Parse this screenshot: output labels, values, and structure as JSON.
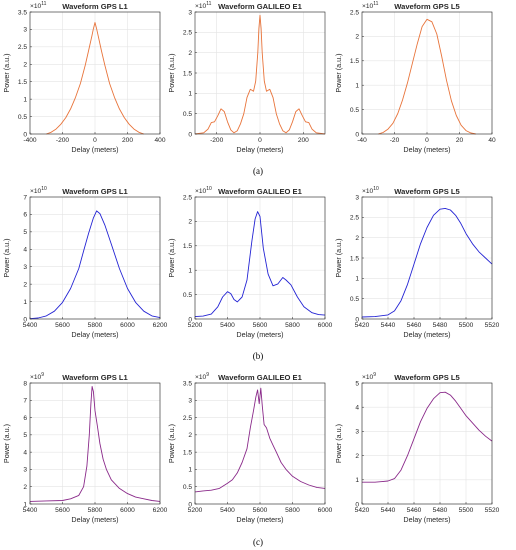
{
  "row_captions": [
    "(a)",
    "(b)",
    "(c)"
  ],
  "colors": {
    "row_a": "#e8743b",
    "row_b": "#2424d4",
    "row_c": "#8a2a8a",
    "axis": "#262626",
    "grid": "#e4e4e4"
  },
  "chart_data": [
    {
      "type": "line",
      "title": "Waveform GPS L1",
      "xlabel": "Delay (meters)",
      "ylabel": "Power (a.u.)",
      "multiplier": "×10^11",
      "multiplier_base": "×10",
      "multiplier_exp": "11",
      "xlim": [
        -400,
        400
      ],
      "ylim": [
        0,
        3.5
      ],
      "xticks": [
        -400,
        -200,
        0,
        200,
        400
      ],
      "yticks": [
        0,
        0.5,
        1,
        1.5,
        2,
        2.5,
        3,
        3.5
      ],
      "grid": true,
      "x": [
        -300,
        -270,
        -240,
        -210,
        -180,
        -150,
        -120,
        -90,
        -60,
        -40,
        -20,
        -10,
        0,
        10,
        20,
        40,
        60,
        90,
        120,
        150,
        180,
        210,
        240,
        270,
        300
      ],
      "y": [
        0.0,
        0.05,
        0.14,
        0.28,
        0.47,
        0.72,
        1.05,
        1.45,
        1.98,
        2.38,
        2.8,
        3.02,
        3.2,
        3.02,
        2.8,
        2.38,
        1.98,
        1.45,
        1.05,
        0.72,
        0.47,
        0.28,
        0.14,
        0.05,
        0.0
      ]
    },
    {
      "type": "line",
      "title": "Waveform GALILEO E1",
      "xlabel": "Delay (meters)",
      "ylabel": "Power (a.u.)",
      "multiplier": "×10^11",
      "multiplier_base": "×10",
      "multiplier_exp": "11",
      "xlim": [
        -300,
        300
      ],
      "ylim": [
        0,
        3
      ],
      "xticks": [
        -200,
        0,
        200
      ],
      "yticks": [
        0,
        0.5,
        1,
        1.5,
        2,
        2.5,
        3
      ],
      "grid": true,
      "x": [
        -300,
        -260,
        -240,
        -225,
        -210,
        -195,
        -180,
        -165,
        -150,
        -135,
        -120,
        -105,
        -90,
        -75,
        -60,
        -45,
        -30,
        -20,
        -10,
        -5,
        0,
        5,
        10,
        20,
        30,
        45,
        60,
        75,
        90,
        105,
        120,
        135,
        150,
        165,
        180,
        195,
        210,
        225,
        240,
        260,
        300
      ],
      "y": [
        0.0,
        0.03,
        0.12,
        0.28,
        0.3,
        0.45,
        0.62,
        0.55,
        0.3,
        0.1,
        0.03,
        0.08,
        0.25,
        0.5,
        0.9,
        1.1,
        1.05,
        1.3,
        2.0,
        2.6,
        2.92,
        2.6,
        2.0,
        1.3,
        1.05,
        1.1,
        0.9,
        0.5,
        0.25,
        0.08,
        0.03,
        0.1,
        0.3,
        0.55,
        0.62,
        0.45,
        0.3,
        0.28,
        0.12,
        0.03,
        0.0
      ]
    },
    {
      "type": "line",
      "title": "Waveform GPS L5",
      "xlabel": "Delay (meters)",
      "ylabel": "Power (a.u.)",
      "multiplier": "×10^11",
      "multiplier_base": "×10",
      "multiplier_exp": "11",
      "xlim": [
        -40,
        40
      ],
      "ylim": [
        0,
        2.5
      ],
      "xticks": [
        -40,
        -20,
        0,
        20,
        40
      ],
      "yticks": [
        0,
        0.5,
        1,
        1.5,
        2,
        2.5
      ],
      "grid": true,
      "x": [
        -30,
        -27,
        -24,
        -21,
        -18,
        -15,
        -12,
        -9,
        -6,
        -3,
        0,
        3,
        6,
        9,
        12,
        15,
        18,
        21,
        24,
        27,
        30
      ],
      "y": [
        0.0,
        0.03,
        0.1,
        0.22,
        0.42,
        0.7,
        1.05,
        1.45,
        1.85,
        2.2,
        2.35,
        2.3,
        2.05,
        1.6,
        1.1,
        0.68,
        0.38,
        0.18,
        0.07,
        0.02,
        0.0
      ]
    },
    {
      "type": "line",
      "title": "Waveform GPS L1",
      "xlabel": "Delay (meters)",
      "ylabel": "Power (a.u.)",
      "multiplier": "×10^10",
      "multiplier_base": "×10",
      "multiplier_exp": "10",
      "xlim": [
        5400,
        6200
      ],
      "ylim": [
        0,
        7
      ],
      "xticks": [
        5400,
        5600,
        5800,
        6000,
        6200
      ],
      "yticks": [
        0,
        1,
        2,
        3,
        4,
        5,
        6,
        7
      ],
      "grid": true,
      "x": [
        5400,
        5450,
        5500,
        5550,
        5600,
        5650,
        5700,
        5730,
        5760,
        5790,
        5810,
        5830,
        5860,
        5900,
        5950,
        6000,
        6050,
        6100,
        6150,
        6200
      ],
      "y": [
        0.02,
        0.06,
        0.18,
        0.45,
        0.95,
        1.75,
        2.9,
        3.9,
        4.9,
        5.8,
        6.2,
        6.05,
        5.4,
        4.3,
        2.9,
        1.75,
        0.95,
        0.45,
        0.18,
        0.08
      ]
    },
    {
      "type": "line",
      "title": "Waveform GALILEO E1",
      "xlabel": "Delay (meters)",
      "ylabel": "Power (a.u.)",
      "multiplier": "×10^10",
      "multiplier_base": "×10",
      "multiplier_exp": "10",
      "xlim": [
        5200,
        6000
      ],
      "ylim": [
        0,
        2.5
      ],
      "xticks": [
        5200,
        5400,
        5600,
        5800,
        6000
      ],
      "yticks": [
        0,
        0.5,
        1,
        1.5,
        2,
        2.5
      ],
      "grid": true,
      "x": [
        5200,
        5250,
        5300,
        5340,
        5370,
        5400,
        5420,
        5440,
        5460,
        5490,
        5520,
        5550,
        5570,
        5585,
        5600,
        5620,
        5650,
        5680,
        5710,
        5740,
        5760,
        5790,
        5830,
        5870,
        5920,
        5960,
        6000
      ],
      "y": [
        0.05,
        0.06,
        0.1,
        0.25,
        0.45,
        0.56,
        0.52,
        0.4,
        0.35,
        0.45,
        0.8,
        1.6,
        2.05,
        2.2,
        2.1,
        1.45,
        0.92,
        0.68,
        0.72,
        0.85,
        0.8,
        0.7,
        0.45,
        0.25,
        0.13,
        0.09,
        0.08
      ]
    },
    {
      "type": "line",
      "title": "Waveform GPS L5",
      "xlabel": "Delay (meters)",
      "ylabel": "Power (a.u.)",
      "multiplier": "×10^10",
      "multiplier_base": "×10",
      "multiplier_exp": "10",
      "xlim": [
        5420,
        5520
      ],
      "ylim": [
        0,
        3
      ],
      "xticks": [
        5420,
        5440,
        5460,
        5480,
        5500,
        5520
      ],
      "yticks": [
        0,
        0.5,
        1,
        1.5,
        2,
        2.5,
        3
      ],
      "grid": true,
      "x": [
        5420,
        5430,
        5440,
        5445,
        5450,
        5455,
        5460,
        5465,
        5470,
        5475,
        5480,
        5484,
        5488,
        5492,
        5496,
        5500,
        5505,
        5510,
        5515,
        5520
      ],
      "y": [
        0.05,
        0.06,
        0.1,
        0.2,
        0.45,
        0.85,
        1.35,
        1.85,
        2.25,
        2.55,
        2.7,
        2.72,
        2.68,
        2.55,
        2.35,
        2.1,
        1.85,
        1.65,
        1.5,
        1.35
      ]
    },
    {
      "type": "line",
      "title": "Waveform GPS L1",
      "xlabel": "Delay (meters)",
      "ylabel": "Power (a.u.)",
      "multiplier": "×10^9",
      "multiplier_base": "×10",
      "multiplier_exp": "9",
      "xlim": [
        5400,
        6200
      ],
      "ylim": [
        1,
        8
      ],
      "xticks": [
        5400,
        5600,
        5800,
        6000,
        6200
      ],
      "yticks": [
        1,
        2,
        3,
        4,
        5,
        6,
        7,
        8
      ],
      "grid": true,
      "x": [
        5400,
        5500,
        5600,
        5650,
        5700,
        5730,
        5750,
        5765,
        5775,
        5782,
        5790,
        5800,
        5815,
        5830,
        5850,
        5870,
        5900,
        5950,
        6000,
        6050,
        6100,
        6150,
        6200
      ],
      "y": [
        1.15,
        1.18,
        1.2,
        1.3,
        1.5,
        2.0,
        3.2,
        5.0,
        6.8,
        7.8,
        7.5,
        6.4,
        5.5,
        4.5,
        3.6,
        3.0,
        2.4,
        1.9,
        1.6,
        1.4,
        1.3,
        1.2,
        1.15
      ]
    },
    {
      "type": "line",
      "title": "Waveform GALILEO E1",
      "xlabel": "Delay (meters)",
      "ylabel": "Power (a.u.)",
      "multiplier": "×10^9",
      "multiplier_base": "×10",
      "multiplier_exp": "9",
      "xlim": [
        5200,
        6000
      ],
      "ylim": [
        0,
        3.5
      ],
      "xticks": [
        5200,
        5400,
        5600,
        5800,
        6000
      ],
      "yticks": [
        0,
        0.5,
        1,
        1.5,
        2,
        2.5,
        3,
        3.5
      ],
      "grid": true,
      "x": [
        5200,
        5250,
        5300,
        5350,
        5400,
        5430,
        5460,
        5490,
        5520,
        5540,
        5560,
        5575,
        5585,
        5595,
        5605,
        5615,
        5625,
        5640,
        5660,
        5680,
        5700,
        5730,
        5760,
        5800,
        5850,
        5900,
        5950,
        6000
      ],
      "y": [
        0.35,
        0.38,
        0.4,
        0.45,
        0.6,
        0.7,
        0.9,
        1.2,
        1.6,
        2.2,
        2.7,
        3.1,
        3.3,
        2.9,
        3.35,
        2.8,
        2.3,
        2.2,
        1.9,
        1.7,
        1.5,
        1.2,
        1.0,
        0.8,
        0.65,
        0.55,
        0.48,
        0.45
      ]
    },
    {
      "type": "line",
      "title": "Waveform GPS L5",
      "xlabel": "Delay (meters)",
      "ylabel": "Power (a.u.)",
      "multiplier": "×10^9",
      "multiplier_base": "×10",
      "multiplier_exp": "9",
      "xlim": [
        5420,
        5520
      ],
      "ylim": [
        0,
        5
      ],
      "xticks": [
        5420,
        5440,
        5460,
        5480,
        5500,
        5520
      ],
      "yticks": [
        0,
        1,
        2,
        3,
        4,
        5
      ],
      "grid": true,
      "x": [
        5420,
        5430,
        5440,
        5445,
        5450,
        5455,
        5460,
        5465,
        5470,
        5475,
        5480,
        5484,
        5488,
        5492,
        5496,
        5500,
        5505,
        5510,
        5515,
        5520
      ],
      "y": [
        0.9,
        0.9,
        0.95,
        1.05,
        1.4,
        2.0,
        2.7,
        3.4,
        3.95,
        4.35,
        4.6,
        4.62,
        4.5,
        4.25,
        3.95,
        3.65,
        3.35,
        3.05,
        2.8,
        2.6
      ]
    }
  ]
}
